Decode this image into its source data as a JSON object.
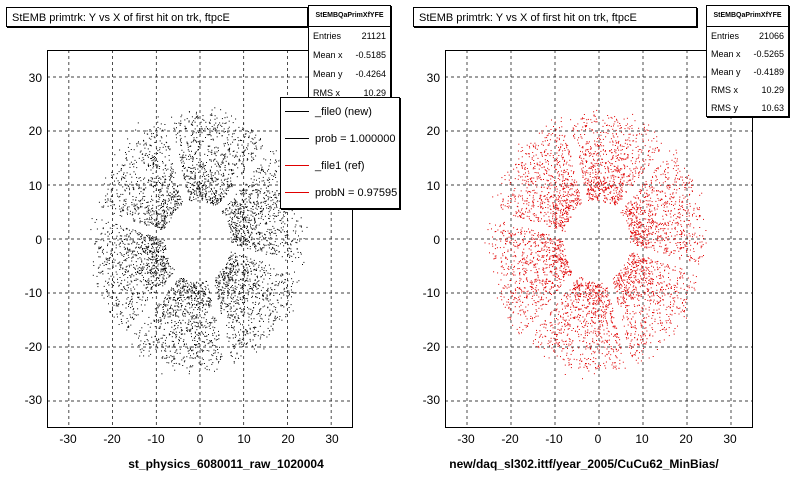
{
  "footnote": "",
  "chart_data": [
    {
      "type": "scatter",
      "title": "StEMB primtrk: Y vs X of first hit on trk, ftpcE",
      "xlabel": "st_physics_6080011_raw_1020004",
      "ylabel": "",
      "xlim": [
        -35,
        35
      ],
      "ylim": [
        -35,
        35
      ],
      "x_ticks": [
        "-30",
        "-20",
        "-10",
        "0",
        "10",
        "20",
        "30"
      ],
      "y_ticks": [
        "30",
        "20",
        "10",
        "0",
        "-10",
        "-20",
        "-30"
      ],
      "grid": true,
      "color": "#000000",
      "distribution": {
        "inner_radius": 8,
        "outer_radius": 24,
        "sectors": 6,
        "gap_width": 1.5
      },
      "stats": {
        "header": "StEMBQaPrimXfYFE",
        "rows": [
          {
            "label": "Entries",
            "value": "21121"
          },
          {
            "label": "Mean x",
            "value": "-0.5185"
          },
          {
            "label": "Mean y",
            "value": "-0.4264"
          },
          {
            "label": "RMS x",
            "value": "10.29"
          }
        ]
      },
      "legend": {
        "position": "top-right",
        "entries": [
          {
            "label": "_file0 (new)",
            "color": "#000000"
          },
          {
            "label": "prob = 1.000000",
            "color": "#000000"
          },
          {
            "label": "_file1 (ref)",
            "color": "#e00000"
          },
          {
            "label": "probN = 0.97595",
            "color": "#e00000"
          }
        ]
      }
    },
    {
      "type": "scatter",
      "title": "StEMB primtrk: Y vs X of first hit on trk, ftpcE",
      "xlabel": "new/daq_sl302.ittf/year_2005/CuCu62_MinBias/",
      "ylabel": "",
      "xlim": [
        -35,
        35
      ],
      "ylim": [
        -35,
        35
      ],
      "x_ticks": [
        "-30",
        "-20",
        "-10",
        "0",
        "10",
        "20",
        "30"
      ],
      "y_ticks": [
        "30",
        "20",
        "10",
        "0",
        "-10",
        "-20",
        "-30"
      ],
      "grid": true,
      "color": "#e00000",
      "distribution": {
        "inner_radius": 8,
        "outer_radius": 24,
        "sectors": 6,
        "gap_width": 1.5
      },
      "stats": {
        "header": "StEMBQaPrimXfYFE",
        "rows": [
          {
            "label": "Entries",
            "value": "21066"
          },
          {
            "label": "Mean x",
            "value": "-0.5265"
          },
          {
            "label": "Mean y",
            "value": "-0.4189"
          },
          {
            "label": "RMS x",
            "value": "10.29"
          },
          {
            "label": "RMS y",
            "value": "10.63"
          }
        ]
      }
    }
  ]
}
